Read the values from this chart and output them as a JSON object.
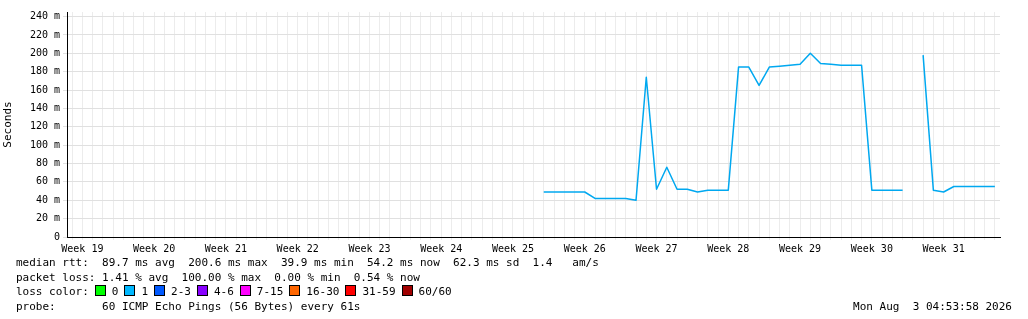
{
  "chart_data": {
    "type": "line",
    "ylabel": "Seconds",
    "categories": [
      null,
      "Week 19",
      null,
      null,
      null,
      null,
      null,
      null,
      "Week 20",
      null,
      null,
      null,
      null,
      null,
      null,
      "Week 21",
      null,
      null,
      null,
      null,
      null,
      null,
      "Week 22",
      null,
      null,
      null,
      null,
      null,
      null,
      "Week 23",
      null,
      null,
      null,
      null,
      null,
      null,
      "Week 24",
      null,
      null,
      null,
      null,
      null,
      null,
      "Week 25",
      null,
      null,
      null,
      null,
      null,
      null,
      "Week 26",
      null,
      null,
      null,
      null,
      null,
      null,
      "Week 27",
      null,
      null,
      null,
      null,
      null,
      null,
      "Week 28",
      null,
      null,
      null,
      null,
      null,
      null,
      "Week 29",
      null,
      null,
      null,
      null,
      null,
      null,
      "Week 30",
      null,
      null,
      null,
      null,
      null,
      null,
      "Week 31",
      null,
      null,
      null,
      null,
      null
    ],
    "ylim": [
      0,
      245
    ],
    "yticks": [
      0,
      {
        "value": 20,
        "label": "20 m"
      },
      {
        "value": 40,
        "label": "40 m"
      },
      {
        "value": 60,
        "label": "60 m"
      },
      {
        "value": 80,
        "label": "80 m"
      },
      {
        "value": 100,
        "label": "100 m"
      },
      {
        "value": 120,
        "label": "120 m"
      },
      {
        "value": 140,
        "label": "140 m"
      },
      {
        "value": 160,
        "label": "160 m"
      },
      {
        "value": 180,
        "label": "180 m"
      },
      {
        "value": 200,
        "label": "200 m"
      },
      {
        "value": 220,
        "label": "220 m"
      },
      {
        "value": 240,
        "label": "240 m"
      }
    ],
    "grid": true,
    "legend": false,
    "marker": "none",
    "line_style": "solid",
    "series": [
      {
        "color": "#00a8f0",
        "values": [
          null,
          null,
          null,
          null,
          null,
          null,
          null,
          null,
          null,
          null,
          null,
          null,
          null,
          null,
          null,
          null,
          null,
          null,
          null,
          null,
          null,
          null,
          null,
          null,
          null,
          null,
          null,
          null,
          null,
          null,
          null,
          null,
          null,
          null,
          null,
          null,
          null,
          null,
          null,
          null,
          null,
          null,
          null,
          null,
          null,
          null,
          49,
          49,
          49,
          49,
          49,
          42,
          42,
          42,
          42,
          40,
          174,
          52,
          76,
          52,
          52,
          49,
          51,
          51,
          51,
          185,
          185,
          165,
          185,
          186,
          187,
          188,
          200,
          189,
          188,
          187,
          187,
          187,
          51,
          51,
          51,
          51,
          null,
          198,
          51,
          49,
          55,
          55,
          55,
          55,
          55
        ]
      }
    ],
    "annotations": [
      "median rtt:  89.7 ms avg  200.6 ms max  39.9 ms min  54.2 ms now  62.3 ms sd  1.4   am/s",
      "packet loss: 1.41 % avg  100.00 % max  0.00 % min  0.54 % now",
      "loss color:",
      "0",
      "1",
      "2-3",
      "4-6",
      "7-15",
      "16-30",
      "31-59",
      "60/60",
      "probe:       60 ICMP Echo Pings (56 Bytes) every 61s",
      "Mon Aug  3 04:53:58 2026"
    ]
  }
}
